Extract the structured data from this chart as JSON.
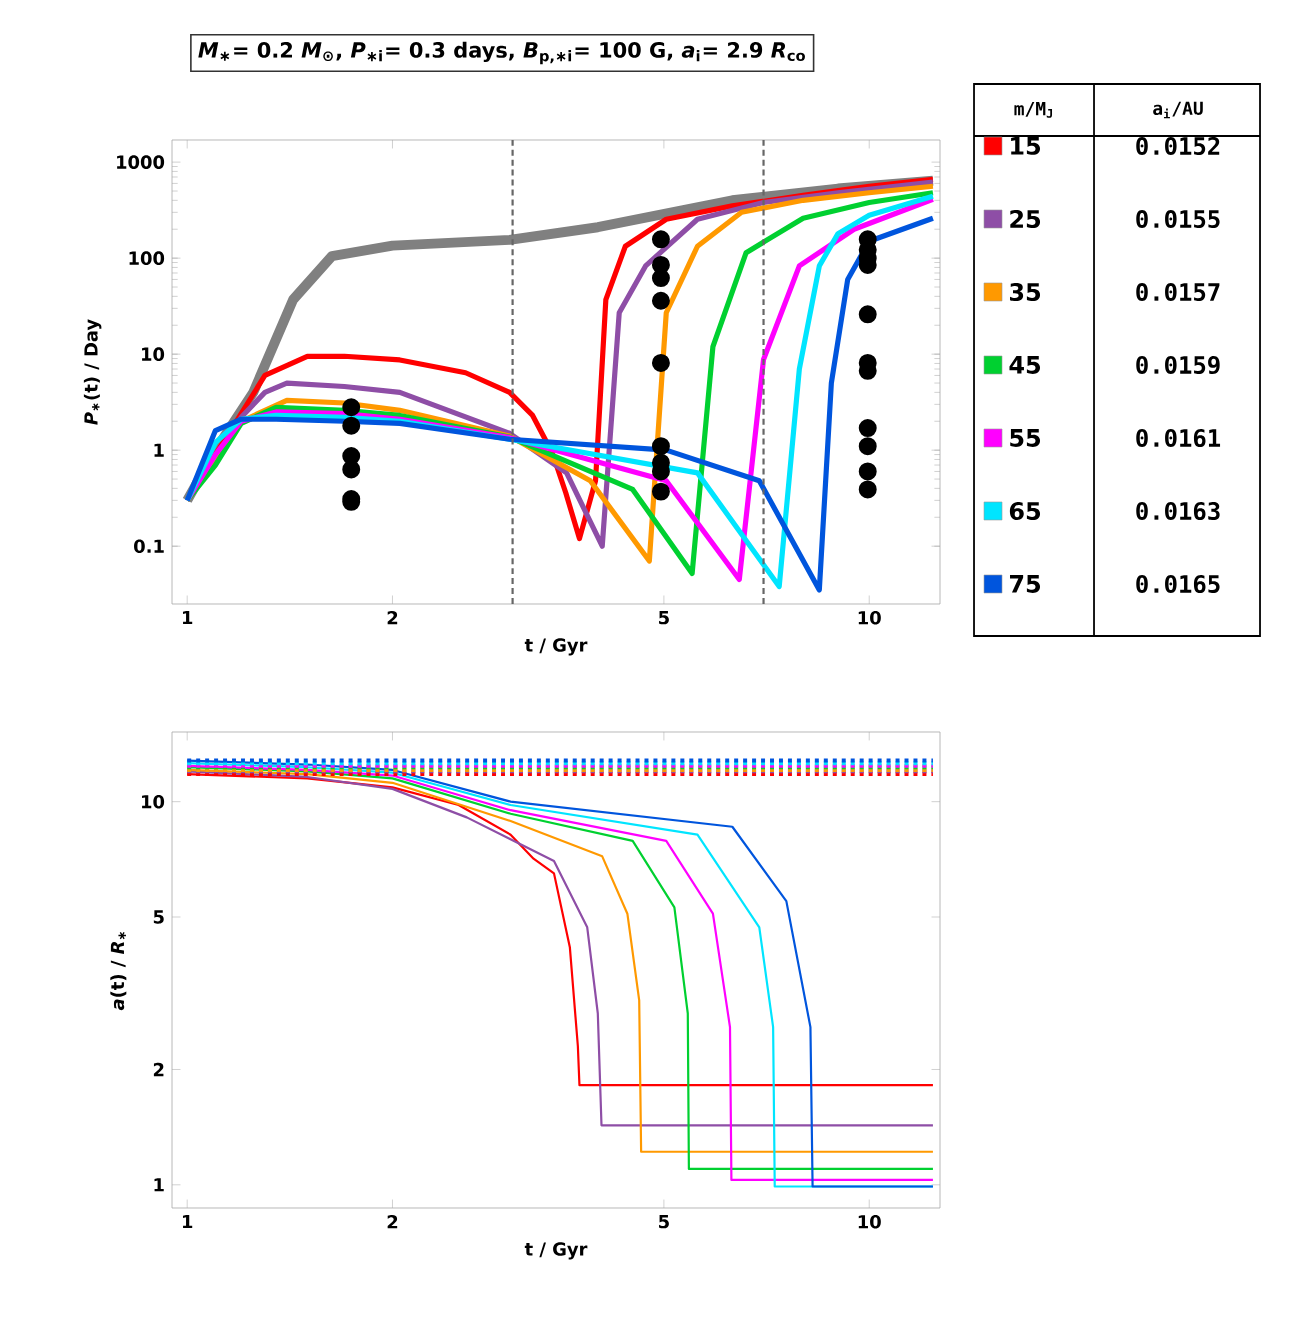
{
  "chart_data": [
    {
      "type": "line",
      "title": "*M*$_{∗}$= 0.2 *M*$_{⊙}$, *P*$_{∗i}$= 0.3 days, *B*$_{p,∗i}$= 100 G,  *a*$_{i}$= 2.9 *R*$_{co}$",
      "xlabel": "t / Gyr",
      "ylabel": "*P*$_{∗}$(t) / Day",
      "legend_title": "m/M$_{J}$",
      "legend": "right",
      "log": "xy",
      "annotations": [
        "a$_{i}$/AU",
        "0.0152",
        "0.0155",
        "0.0157",
        "0.0159",
        "0.0161",
        "0.0163",
        "0.0165"
      ],
      "xlim": [
        0.95,
        12.7
      ],
      "ylim": [
        0.025,
        1700
      ],
      "xticks": [
        1,
        2,
        5,
        10
      ],
      "yticks": [
        0.1,
        1,
        10,
        100,
        1000
      ],
      "ref_lines": [
        {
          "axis": "x",
          "value": 3,
          "color": "#666666",
          "line_style": "dashed"
        },
        {
          "axis": "x",
          "value": 7,
          "color": "#666666",
          "line_style": "dashed"
        }
      ],
      "series": [
        {
          "color": "#808080",
          "x": [
            1,
            1.1,
            1.25,
            1.43,
            1.63,
            2,
            2.97,
            4,
            6.3,
            9,
            12.4
          ],
          "values": [
            0.3,
            1.0,
            4,
            37,
            105,
            135,
            155,
            210,
            400,
            530,
            640
          ]
        },
        {
          "name": "15",
          "color": "#ff0000",
          "x": [
            1,
            1.1,
            1.2,
            1.3,
            1.5,
            1.7,
            2.05,
            2.56,
            2.97,
            3.21,
            3.43,
            3.59,
            3.76,
            3.97,
            4.11,
            4.39,
            5.04,
            6.3,
            8,
            10,
            12.4
          ],
          "values": [
            0.3,
            0.9,
            2.4,
            6,
            9.5,
            9.5,
            8.7,
            6.4,
            4,
            2.3,
            0.94,
            0.36,
            0.12,
            0.48,
            37,
            133,
            254,
            350,
            450,
            560,
            660
          ]
        },
        {
          "name": "25",
          "color": "#8e4ea6",
          "x": [
            1,
            1.1,
            1.2,
            1.3,
            1.4,
            1.7,
            2.05,
            2.97,
            3.6,
            4.06,
            4.3,
            4.7,
            5.6,
            7,
            9,
            12.4
          ],
          "values": [
            0.3,
            0.8,
            2.2,
            4,
            5,
            4.6,
            4,
            1.5,
            0.58,
            0.1,
            27,
            83,
            254,
            380,
            480,
            620
          ]
        },
        {
          "name": "35",
          "color": "#ff9900",
          "x": [
            1,
            1.1,
            1.2,
            1.4,
            1.7,
            2.05,
            2.97,
            3.9,
            4.76,
            5.04,
            5.6,
            6.5,
            8,
            10,
            12.4
          ],
          "values": [
            0.3,
            0.75,
            2.0,
            3.3,
            3.1,
            2.6,
            1.4,
            0.48,
            0.07,
            27,
            133,
            300,
            400,
            480,
            560
          ]
        },
        {
          "name": "45",
          "color": "#00d030",
          "x": [
            1,
            1.1,
            1.2,
            1.35,
            1.7,
            2.05,
            2.97,
            4.5,
            5.5,
            5.9,
            6.6,
            8,
            10,
            12.4
          ],
          "values": [
            0.3,
            0.7,
            1.9,
            2.8,
            2.6,
            2.3,
            1.37,
            0.39,
            0.052,
            12,
            114,
            260,
            380,
            480
          ]
        },
        {
          "name": "55",
          "color": "#ff00ff",
          "x": [
            1,
            1.1,
            1.2,
            1.35,
            1.7,
            2.05,
            2.97,
            5.04,
            6.45,
            7.0,
            7.9,
            9.5,
            12.4
          ],
          "values": [
            0.3,
            0.9,
            2.0,
            2.5,
            2.4,
            2.1,
            1.35,
            0.48,
            0.045,
            8.8,
            83,
            200,
            410
          ]
        },
        {
          "name": "65",
          "color": "#00e5ff",
          "x": [
            1,
            1.1,
            1.2,
            1.35,
            1.7,
            2.05,
            2.97,
            5.6,
            7.38,
            7.9,
            8.45,
            9.0,
            10,
            12.4
          ],
          "values": [
            0.3,
            1.2,
            2.1,
            2.3,
            2.2,
            2.0,
            1.3,
            0.58,
            0.038,
            7,
            83,
            180,
            280,
            440
          ]
        },
        {
          "name": "75",
          "color": "#0055dd",
          "x": [
            1,
            1.1,
            1.2,
            1.35,
            1.7,
            2.05,
            2.97,
            5.04,
            6.9,
            8.45,
            8.8,
            9.3,
            10,
            12.4
          ],
          "values": [
            0.3,
            1.6,
            2.1,
            2.1,
            2.0,
            1.9,
            1.3,
            1.0,
            0.48,
            0.035,
            5,
            60,
            150,
            260
          ]
        },
        {
          "type": "scatter",
          "marker": "circle",
          "color": "#000000",
          "x": [
            1.74,
            1.74,
            1.74,
            1.74,
            1.74,
            1.74,
            4.95,
            4.95,
            4.95,
            4.95,
            4.95,
            4.95,
            4.95,
            4.95,
            4.95,
            9.95,
            9.95,
            9.95,
            9.95,
            9.95,
            9.95,
            9.95,
            9.95,
            9.95,
            9.95,
            9.95
          ],
          "values": [
            2.8,
            1.8,
            0.87,
            0.63,
            0.31,
            0.29,
            157,
            85,
            62,
            36,
            8.1,
            1.1,
            0.74,
            0.6,
            0.37,
            157,
            122,
            100,
            85,
            26,
            8.1,
            6.7,
            1.7,
            1.1,
            0.6,
            0.39
          ]
        }
      ]
    },
    {
      "type": "line",
      "xlabel": "t / Gyr",
      "ylabel": "*a*(t) / *R*$_{∗}$",
      "log": "xy",
      "xlim": [
        0.95,
        12.7
      ],
      "ylim": [
        0.87,
        15.2
      ],
      "xticks": [
        1,
        2,
        5,
        10
      ],
      "yticks": [
        1,
        2,
        5,
        10
      ],
      "series": [
        {
          "color": "#ff0000",
          "x": [
            1,
            1.5,
            2,
            2.5,
            2.98,
            3.22,
            3.45,
            3.64,
            3.74,
            3.76,
            12.4
          ],
          "values": [
            11.8,
            11.5,
            10.9,
            9.8,
            8.2,
            7.1,
            6.5,
            4.17,
            2.3,
            1.82,
            1.82
          ]
        },
        {
          "color": "#8e4ea6",
          "x": [
            1,
            1.5,
            2,
            2.57,
            3.45,
            3.86,
            4.0,
            4.05,
            12.4
          ],
          "values": [
            12.0,
            11.6,
            10.8,
            9.1,
            7.0,
            4.7,
            2.8,
            1.43,
            1.43
          ]
        },
        {
          "color": "#ff9900",
          "x": [
            1,
            1.5,
            2,
            2.98,
            4.06,
            4.42,
            4.6,
            4.63,
            12.4
          ],
          "values": [
            12.1,
            11.8,
            11.2,
            8.9,
            7.2,
            5.1,
            3.03,
            1.22,
            1.22
          ]
        },
        {
          "color": "#00d030",
          "x": [
            1,
            1.5,
            2,
            2.98,
            4.5,
            5.18,
            5.42,
            5.44,
            12.4
          ],
          "values": [
            12.3,
            12.0,
            11.5,
            9.3,
            7.9,
            5.3,
            2.8,
            1.1,
            1.1
          ]
        },
        {
          "color": "#ff00ff",
          "x": [
            1,
            1.5,
            2,
            2.98,
            5.04,
            5.9,
            6.25,
            6.28,
            12.4
          ],
          "values": [
            12.4,
            12.1,
            11.7,
            9.5,
            7.9,
            5.1,
            2.58,
            1.03,
            1.03
          ]
        },
        {
          "color": "#00e5ff",
          "x": [
            1,
            1.5,
            2,
            2.98,
            5.6,
            6.9,
            7.23,
            7.27,
            12.4
          ],
          "values": [
            12.6,
            12.3,
            11.9,
            9.8,
            8.2,
            4.7,
            2.58,
            0.99,
            0.99
          ]
        },
        {
          "color": "#0055dd",
          "x": [
            1,
            1.5,
            2,
            2.98,
            6.3,
            7.56,
            8.2,
            8.26,
            12.4
          ],
          "values": [
            12.8,
            12.5,
            12.1,
            10,
            8.6,
            5.5,
            2.58,
            0.99,
            0.99
          ]
        },
        {
          "color": "#ff0000",
          "line_style": "dotted",
          "x": [
            1,
            12.4
          ],
          "values": [
            11.8,
            11.8
          ]
        },
        {
          "color": "#8e4ea6",
          "line_style": "dotted",
          "x": [
            1,
            12.4
          ],
          "values": [
            12.0,
            12.0
          ]
        },
        {
          "color": "#ff9900",
          "line_style": "dotted",
          "x": [
            1,
            12.4
          ],
          "values": [
            12.1,
            12.1
          ]
        },
        {
          "color": "#00d030",
          "line_style": "dotted",
          "x": [
            1,
            12.4
          ],
          "values": [
            12.3,
            12.3
          ]
        },
        {
          "color": "#ff00ff",
          "line_style": "dotted",
          "x": [
            1,
            12.4
          ],
          "values": [
            12.4,
            12.4
          ]
        },
        {
          "color": "#00e5ff",
          "line_style": "dotted",
          "x": [
            1,
            12.4
          ],
          "values": [
            12.6,
            12.6
          ]
        },
        {
          "color": "#0055dd",
          "line_style": "dotted",
          "x": [
            1,
            12.4
          ],
          "values": [
            12.8,
            12.8
          ]
        }
      ]
    }
  ]
}
